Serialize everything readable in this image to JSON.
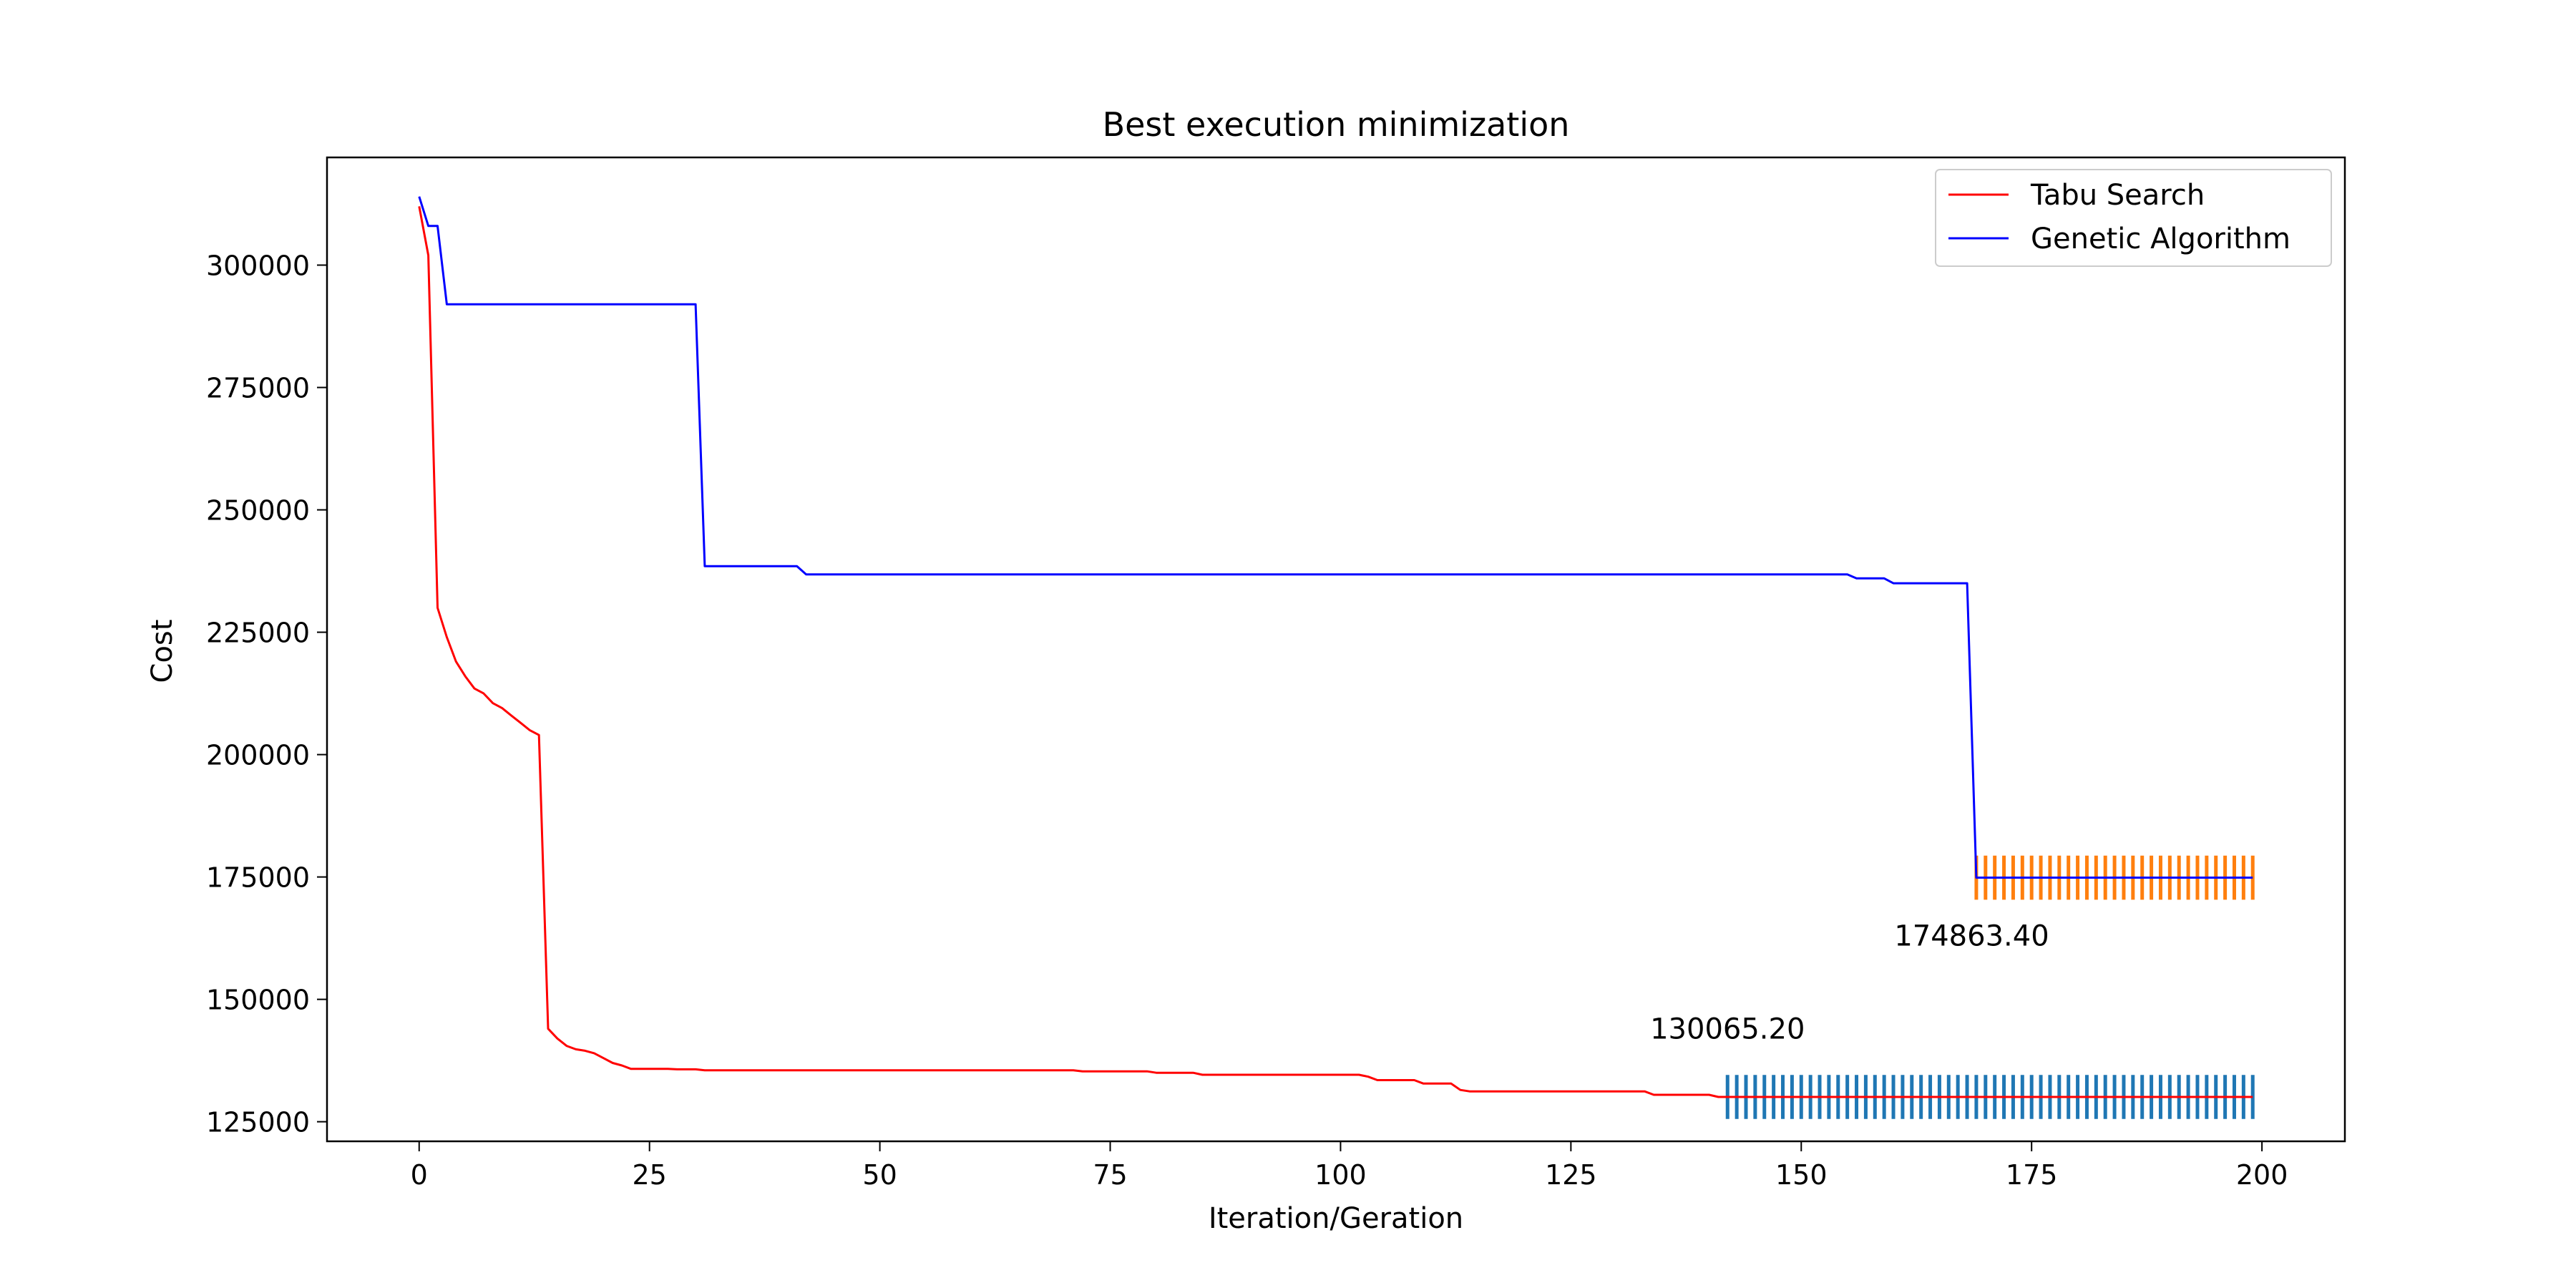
{
  "chart_data": {
    "type": "line",
    "title": "Best execution minimization",
    "xlabel": "Iteration/Geration",
    "ylabel": "Cost",
    "xlim": [
      -10,
      209
    ],
    "ylim": [
      121000,
      322000
    ],
    "xticks": [
      0,
      25,
      50,
      75,
      100,
      125,
      150,
      175,
      200
    ],
    "yticks": [
      125000,
      150000,
      175000,
      200000,
      225000,
      250000,
      275000,
      300000
    ],
    "grid": false,
    "legend_position": "top-right",
    "series": [
      {
        "name": "Tabu Search",
        "color": "#ff0000",
        "points": [
          [
            0,
            312000
          ],
          [
            1,
            302000
          ],
          [
            2,
            230000
          ],
          [
            3,
            224000
          ],
          [
            4,
            219000
          ],
          [
            5,
            216000
          ],
          [
            6,
            213500
          ],
          [
            7,
            212500
          ],
          [
            8,
            210500
          ],
          [
            9,
            209500
          ],
          [
            10,
            208000
          ],
          [
            11,
            206500
          ],
          [
            12,
            205000
          ],
          [
            13,
            204000
          ],
          [
            14,
            144000
          ],
          [
            15,
            142000
          ],
          [
            16,
            140500
          ],
          [
            17,
            139800
          ],
          [
            18,
            139500
          ],
          [
            19,
            139000
          ],
          [
            20,
            138000
          ],
          [
            21,
            137000
          ],
          [
            22,
            136500
          ],
          [
            23,
            135800
          ],
          [
            27,
            135800
          ],
          [
            28,
            135700
          ],
          [
            30,
            135700
          ],
          [
            31,
            135500
          ],
          [
            71,
            135500
          ],
          [
            72,
            135300
          ],
          [
            79,
            135300
          ],
          [
            80,
            135000
          ],
          [
            84,
            135000
          ],
          [
            85,
            134600
          ],
          [
            102,
            134600
          ],
          [
            103,
            134200
          ],
          [
            104,
            133500
          ],
          [
            108,
            133500
          ],
          [
            109,
            132800
          ],
          [
            112,
            132800
          ],
          [
            113,
            131500
          ],
          [
            114,
            131200
          ],
          [
            133,
            131200
          ],
          [
            134,
            130500
          ],
          [
            140,
            130500
          ],
          [
            141,
            130065
          ],
          [
            199,
            130065
          ]
        ]
      },
      {
        "name": "Genetic Algorithm",
        "color": "#0000ff",
        "points": [
          [
            0,
            314000
          ],
          [
            1,
            308000
          ],
          [
            2,
            308000
          ],
          [
            3,
            292000
          ],
          [
            30,
            292000
          ],
          [
            31,
            238500
          ],
          [
            41,
            238500
          ],
          [
            42,
            236800
          ],
          [
            155,
            236800
          ],
          [
            156,
            236000
          ],
          [
            159,
            236000
          ],
          [
            160,
            235000
          ],
          [
            168,
            235000
          ],
          [
            169,
            174863
          ],
          [
            199,
            174863
          ]
        ]
      }
    ],
    "annotations": [
      {
        "text": "130065.20",
        "x": 142,
        "y": 142000
      },
      {
        "text": "174863.40",
        "x": 168.5,
        "y": 161000
      }
    ],
    "error_markers": [
      {
        "series": "Tabu Search",
        "color": "#1f77b4",
        "x_start": 142,
        "x_end": 199,
        "center": 130065,
        "half_range": 4500
      },
      {
        "series": "Genetic Algorithm",
        "color": "#ff7f0e",
        "x_start": 169,
        "x_end": 199,
        "center": 174863,
        "half_range": 4500
      }
    ]
  }
}
